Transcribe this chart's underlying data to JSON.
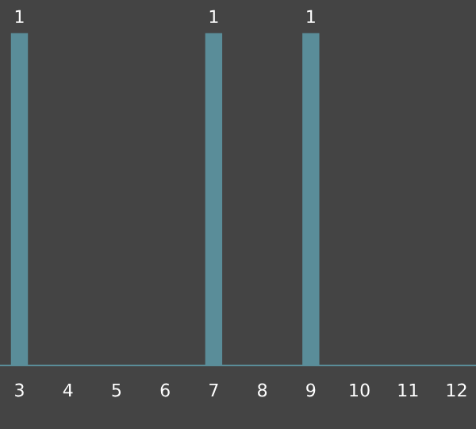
{
  "chart_data": {
    "type": "bar",
    "categories": [
      "3",
      "4",
      "5",
      "6",
      "7",
      "8",
      "9",
      "10",
      "11",
      "12"
    ],
    "values": [
      1,
      0,
      0,
      0,
      1,
      0,
      1,
      0,
      0,
      0
    ],
    "value_labels": [
      "1",
      null,
      null,
      null,
      "1",
      null,
      "1",
      null,
      null,
      null
    ],
    "color": "#5a8d99",
    "grid": false,
    "legend": false
  }
}
